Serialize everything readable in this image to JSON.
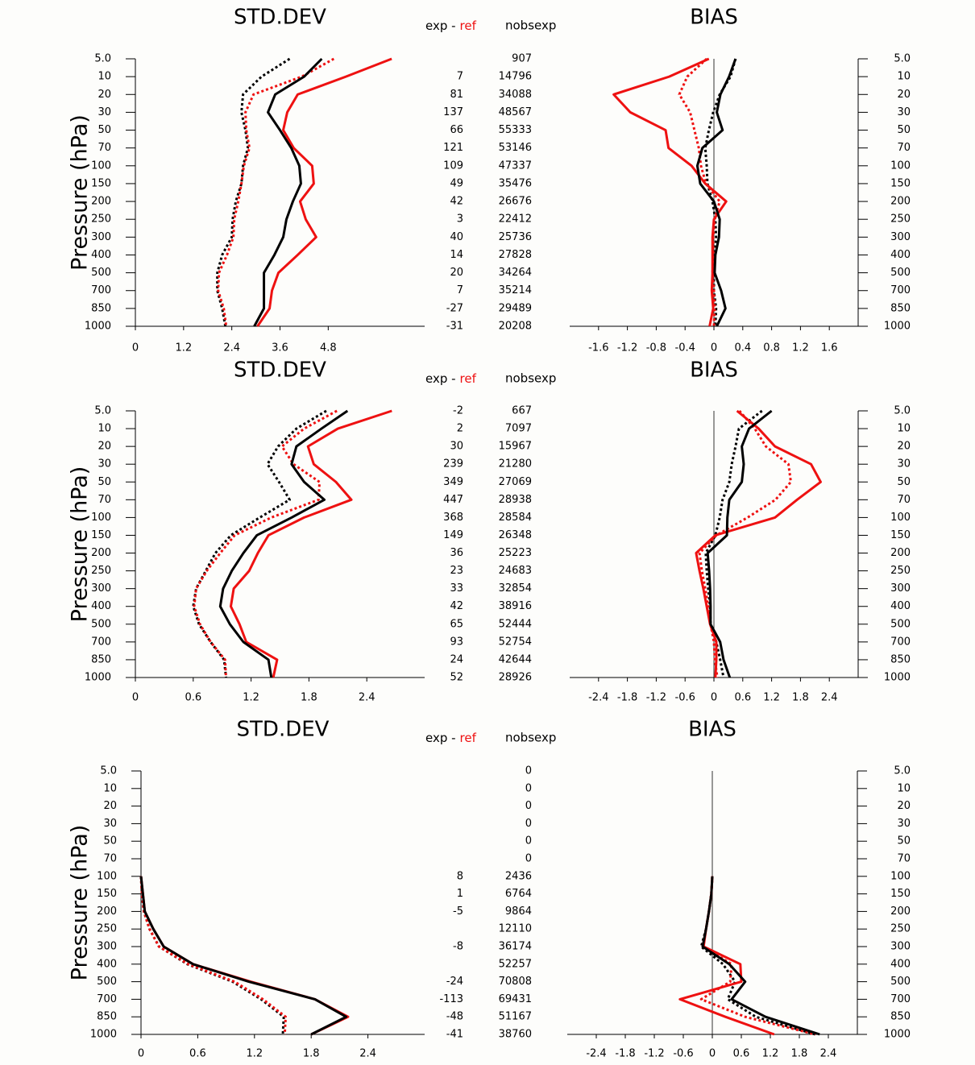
{
  "chart_data": [
    {
      "type": "line",
      "orientation": "horizontal",
      "title": "STD.DEV",
      "y_label": "Pressure (hPa)",
      "ytick_side": "left",
      "categories": [
        "5.0",
        "10",
        "20",
        "30",
        "50",
        "70",
        "100",
        "150",
        "200",
        "250",
        "300",
        "400",
        "500",
        "700",
        "850",
        "1000"
      ],
      "xlim": [
        0,
        7.2
      ],
      "xticks": [
        0,
        1.2,
        2.4,
        3.6,
        4.8
      ],
      "series": [
        {
          "color": "#000000",
          "linestyle": "dotted",
          "values": [
            3.84,
            3.14,
            2.68,
            2.64,
            2.74,
            2.8,
            2.68,
            2.64,
            2.5,
            2.42,
            2.4,
            2.16,
            2.04,
            2.04,
            2.16,
            2.24
          ]
        },
        {
          "color": "#ee1111",
          "linestyle": "dotted",
          "values": [
            4.94,
            4.14,
            2.94,
            2.74,
            2.76,
            2.84,
            2.7,
            2.64,
            2.56,
            2.46,
            2.44,
            2.28,
            2.08,
            2.06,
            2.2,
            2.26
          ]
        },
        {
          "color": "#ee1111",
          "linestyle": "solid",
          "values": [
            6.38,
            5.24,
            4.04,
            3.78,
            3.68,
            3.94,
            4.4,
            4.44,
            4.1,
            4.24,
            4.5,
            4.04,
            3.56,
            3.4,
            3.34,
            3.04
          ]
        },
        {
          "color": "#000000",
          "linestyle": "solid",
          "values": [
            4.64,
            4.2,
            3.48,
            3.3,
            3.6,
            3.88,
            4.08,
            4.12,
            3.92,
            3.76,
            3.68,
            3.46,
            3.2,
            3.2,
            3.2,
            2.96
          ]
        }
      ]
    },
    {
      "type": "line",
      "orientation": "horizontal",
      "title": "BIAS",
      "ytick_side": "right",
      "zero_line": true,
      "categories": [
        "5.0",
        "10",
        "20",
        "30",
        "50",
        "70",
        "100",
        "150",
        "200",
        "250",
        "300",
        "400",
        "500",
        "700",
        "850",
        "1000"
      ],
      "xlim": [
        -2,
        2
      ],
      "xticks": [
        -1.6,
        -1.2,
        -0.8,
        -0.4,
        0,
        0.4,
        0.8,
        1.2,
        1.6
      ],
      "series": [
        {
          "color": "#000000",
          "linestyle": "dotted",
          "values": [
            0.3,
            0.23,
            0.08,
            -0.01,
            -0.07,
            -0.12,
            -0.1,
            -0.09,
            -0.02,
            0.02,
            0.03,
            0.01,
            0,
            0,
            0.03,
            0.02
          ]
        },
        {
          "color": "#ee1111",
          "linestyle": "dotted",
          "values": [
            -0.1,
            -0.37,
            -0.48,
            -0.33,
            -0.27,
            -0.21,
            -0.18,
            -0.11,
            0.08,
            0.01,
            -0.01,
            -0.01,
            -0.02,
            0,
            0.01,
            0
          ]
        },
        {
          "color": "#ee1111",
          "linestyle": "solid",
          "values": [
            -0.07,
            -0.62,
            -1.39,
            -1.16,
            -0.67,
            -0.63,
            -0.31,
            -0.12,
            0.17,
            0,
            -0.02,
            -0.02,
            -0.02,
            -0.03,
            -0.01,
            -0.06
          ]
        },
        {
          "color": "#000000",
          "linestyle": "solid",
          "values": [
            0.3,
            0.21,
            0.09,
            0.04,
            0.12,
            -0.16,
            -0.23,
            -0.19,
            0,
            0.08,
            0.07,
            0.02,
            0.01,
            0.1,
            0.16,
            0.04
          ]
        }
      ]
    },
    {
      "type": "line",
      "orientation": "horizontal",
      "title": "STD.DEV",
      "y_label": "Pressure (hPa)",
      "ytick_side": "left",
      "categories": [
        "5.0",
        "10",
        "20",
        "30",
        "50",
        "70",
        "100",
        "150",
        "200",
        "250",
        "300",
        "400",
        "500",
        "700",
        "850",
        "1000"
      ],
      "xlim": [
        0,
        3
      ],
      "xticks": [
        0,
        0.6,
        1.2,
        1.8,
        2.4
      ],
      "series": [
        {
          "color": "#000000",
          "linestyle": "dotted",
          "values": [
            1.98,
            1.67,
            1.48,
            1.37,
            1.49,
            1.6,
            1.29,
            0.99,
            0.83,
            0.73,
            0.63,
            0.6,
            0.66,
            0.78,
            0.92,
            0.94
          ]
        },
        {
          "color": "#ee1111",
          "linestyle": "dotted",
          "values": [
            2.09,
            1.75,
            1.52,
            1.64,
            1.91,
            1.9,
            1.41,
            1.03,
            0.88,
            0.74,
            0.63,
            0.61,
            0.67,
            0.78,
            0.93,
            0.94
          ]
        },
        {
          "color": "#ee1111",
          "linestyle": "solid",
          "values": [
            2.66,
            2.1,
            1.79,
            1.85,
            2.08,
            2.24,
            1.75,
            1.38,
            1.27,
            1.18,
            1.02,
            0.99,
            1.08,
            1.15,
            1.47,
            1.43
          ]
        },
        {
          "color": "#000000",
          "linestyle": "solid",
          "values": [
            2.2,
            1.93,
            1.67,
            1.62,
            1.75,
            1.96,
            1.62,
            1.26,
            1.12,
            1.0,
            0.91,
            0.88,
            0.98,
            1.12,
            1.38,
            1.41
          ]
        }
      ]
    },
    {
      "type": "line",
      "orientation": "horizontal",
      "title": "BIAS",
      "ytick_side": "right",
      "zero_line": true,
      "categories": [
        "5.0",
        "10",
        "20",
        "30",
        "50",
        "70",
        "100",
        "150",
        "200",
        "250",
        "300",
        "400",
        "500",
        "700",
        "850",
        "1000"
      ],
      "xlim": [
        -3,
        3
      ],
      "xticks": [
        -2.4,
        -1.8,
        -1.2,
        -0.6,
        0,
        0.6,
        1.2,
        1.8,
        2.4
      ],
      "series": [
        {
          "color": "#000000",
          "linestyle": "dotted",
          "values": [
            1.0,
            0.52,
            0.45,
            0.37,
            0.32,
            0.18,
            0.12,
            0.03,
            -0.17,
            -0.15,
            -0.12,
            -0.08,
            -0.07,
            0.05,
            0.13,
            0.2
          ]
        },
        {
          "color": "#ee1111",
          "linestyle": "dotted",
          "values": [
            0.53,
            0.85,
            1.08,
            1.55,
            1.6,
            1.28,
            0.7,
            0.05,
            -0.3,
            -0.25,
            -0.18,
            -0.12,
            -0.07,
            0,
            0.02,
            0.07
          ]
        },
        {
          "color": "#ee1111",
          "linestyle": "solid",
          "values": [
            0.48,
            0.93,
            1.27,
            2.02,
            2.22,
            1.73,
            1.27,
            0.03,
            -0.37,
            -0.3,
            -0.22,
            -0.15,
            -0.08,
            0.05,
            0.05,
            0.03
          ]
        },
        {
          "color": "#000000",
          "linestyle": "solid",
          "values": [
            1.2,
            0.73,
            0.58,
            0.62,
            0.58,
            0.32,
            0.28,
            0.27,
            -0.13,
            -0.1,
            -0.08,
            -0.07,
            -0.07,
            0.13,
            0.2,
            0.33
          ]
        }
      ]
    },
    {
      "type": "line",
      "orientation": "horizontal",
      "title": "STD.DEV",
      "y_label": "Pressure (hPa)",
      "ytick_side": "left",
      "categories": [
        "5.0",
        "10",
        "20",
        "30",
        "50",
        "70",
        "100",
        "150",
        "200",
        "250",
        "300",
        "400",
        "500",
        "700",
        "850",
        "1000"
      ],
      "xlim": [
        0,
        3
      ],
      "xticks": [
        0,
        0.6,
        1.2,
        1.8,
        2.4
      ],
      "series": [
        {
          "color": "#000000",
          "linestyle": "dotted",
          "values": [
            null,
            null,
            null,
            null,
            null,
            null,
            0,
            0.01,
            0.03,
            0.09,
            0.19,
            0.49,
            0.97,
            1.27,
            1.51,
            1.5
          ]
        },
        {
          "color": "#ee1111",
          "linestyle": "dotted",
          "values": [
            null,
            null,
            null,
            null,
            null,
            null,
            0,
            0.01,
            0.03,
            0.09,
            0.19,
            0.5,
            0.99,
            1.29,
            1.53,
            1.52
          ]
        },
        {
          "color": "#ee1111",
          "linestyle": "solid",
          "values": [
            null,
            null,
            null,
            null,
            null,
            null,
            0,
            0.02,
            0.04,
            0.13,
            0.24,
            0.55,
            1.16,
            1.84,
            2.19,
            1.8
          ]
        },
        {
          "color": "#000000",
          "linestyle": "solid",
          "values": [
            null,
            null,
            null,
            null,
            null,
            null,
            0,
            0.02,
            0.04,
            0.13,
            0.24,
            0.55,
            1.14,
            1.84,
            2.17,
            1.8
          ]
        }
      ]
    },
    {
      "type": "line",
      "orientation": "horizontal",
      "title": "BIAS",
      "ytick_side": "right",
      "zero_line": true,
      "categories": [
        "5.0",
        "10",
        "20",
        "30",
        "50",
        "70",
        "100",
        "150",
        "200",
        "250",
        "300",
        "400",
        "500",
        "700",
        "850",
        "1000"
      ],
      "xlim": [
        -3,
        3
      ],
      "xticks": [
        -2.4,
        -1.8,
        -1.2,
        -0.6,
        0,
        0.6,
        1.2,
        1.8,
        2.4
      ],
      "series": [
        {
          "color": "#000000",
          "linestyle": "dotted",
          "values": [
            null,
            null,
            null,
            null,
            null,
            null,
            0,
            -0.02,
            -0.07,
            -0.13,
            -0.23,
            0.22,
            0.47,
            0.32,
            0.9,
            2.13
          ]
        },
        {
          "color": "#ee1111",
          "linestyle": "dotted",
          "values": [
            null,
            null,
            null,
            null,
            null,
            null,
            0,
            -0.02,
            -0.07,
            -0.13,
            -0.2,
            0.4,
            0.37,
            -0.23,
            0.68,
            2.13
          ]
        },
        {
          "color": "#ee1111",
          "linestyle": "solid",
          "values": [
            null,
            null,
            null,
            null,
            null,
            null,
            0,
            -0.02,
            -0.07,
            -0.13,
            -0.18,
            0.58,
            0.6,
            -0.67,
            0.27,
            1.28
          ]
        },
        {
          "color": "#000000",
          "linestyle": "solid",
          "values": [
            null,
            null,
            null,
            null,
            null,
            null,
            0,
            -0.02,
            -0.07,
            -0.13,
            -0.2,
            0.35,
            0.68,
            0.4,
            1.1,
            2.22
          ]
        }
      ]
    }
  ],
  "count_tables": [
    {
      "diff_header": [
        "exp -",
        "ref"
      ],
      "nobs_header": "nobsexp",
      "ref_color": "#ee1111",
      "negative_color": "#ee1111",
      "exp_minus_ref": [
        null,
        7,
        81,
        137,
        66,
        121,
        109,
        49,
        42,
        3,
        40,
        14,
        20,
        7,
        -27,
        -31
      ],
      "nobsexp": [
        907,
        14796,
        34088,
        48567,
        55333,
        53146,
        47337,
        35476,
        26676,
        22412,
        25736,
        27828,
        34264,
        35214,
        29489,
        20208
      ]
    },
    {
      "diff_header": [
        "exp -",
        "ref"
      ],
      "nobs_header": "nobsexp",
      "ref_color": "#ee1111",
      "negative_color": "#ee1111",
      "exp_minus_ref": [
        -2,
        2,
        30,
        239,
        349,
        447,
        368,
        149,
        36,
        23,
        33,
        42,
        65,
        93,
        24,
        52
      ],
      "nobsexp": [
        667,
        7097,
        15967,
        21280,
        27069,
        28938,
        28584,
        26348,
        25223,
        24683,
        32854,
        38916,
        52444,
        52754,
        42644,
        28926
      ]
    },
    {
      "diff_header": [
        "exp -",
        "ref"
      ],
      "nobs_header": "nobsexp",
      "ref_color": "#ee1111",
      "negative_color": "#ee1111",
      "exp_minus_ref": [
        null,
        null,
        null,
        null,
        null,
        null,
        8,
        1,
        -5,
        null,
        -8,
        null,
        -24,
        -113,
        -48,
        -41
      ],
      "nobsexp": [
        0,
        0,
        0,
        0,
        0,
        0,
        2436,
        6764,
        9864,
        12110,
        36174,
        52257,
        70808,
        69431,
        51167,
        38760
      ]
    }
  ]
}
